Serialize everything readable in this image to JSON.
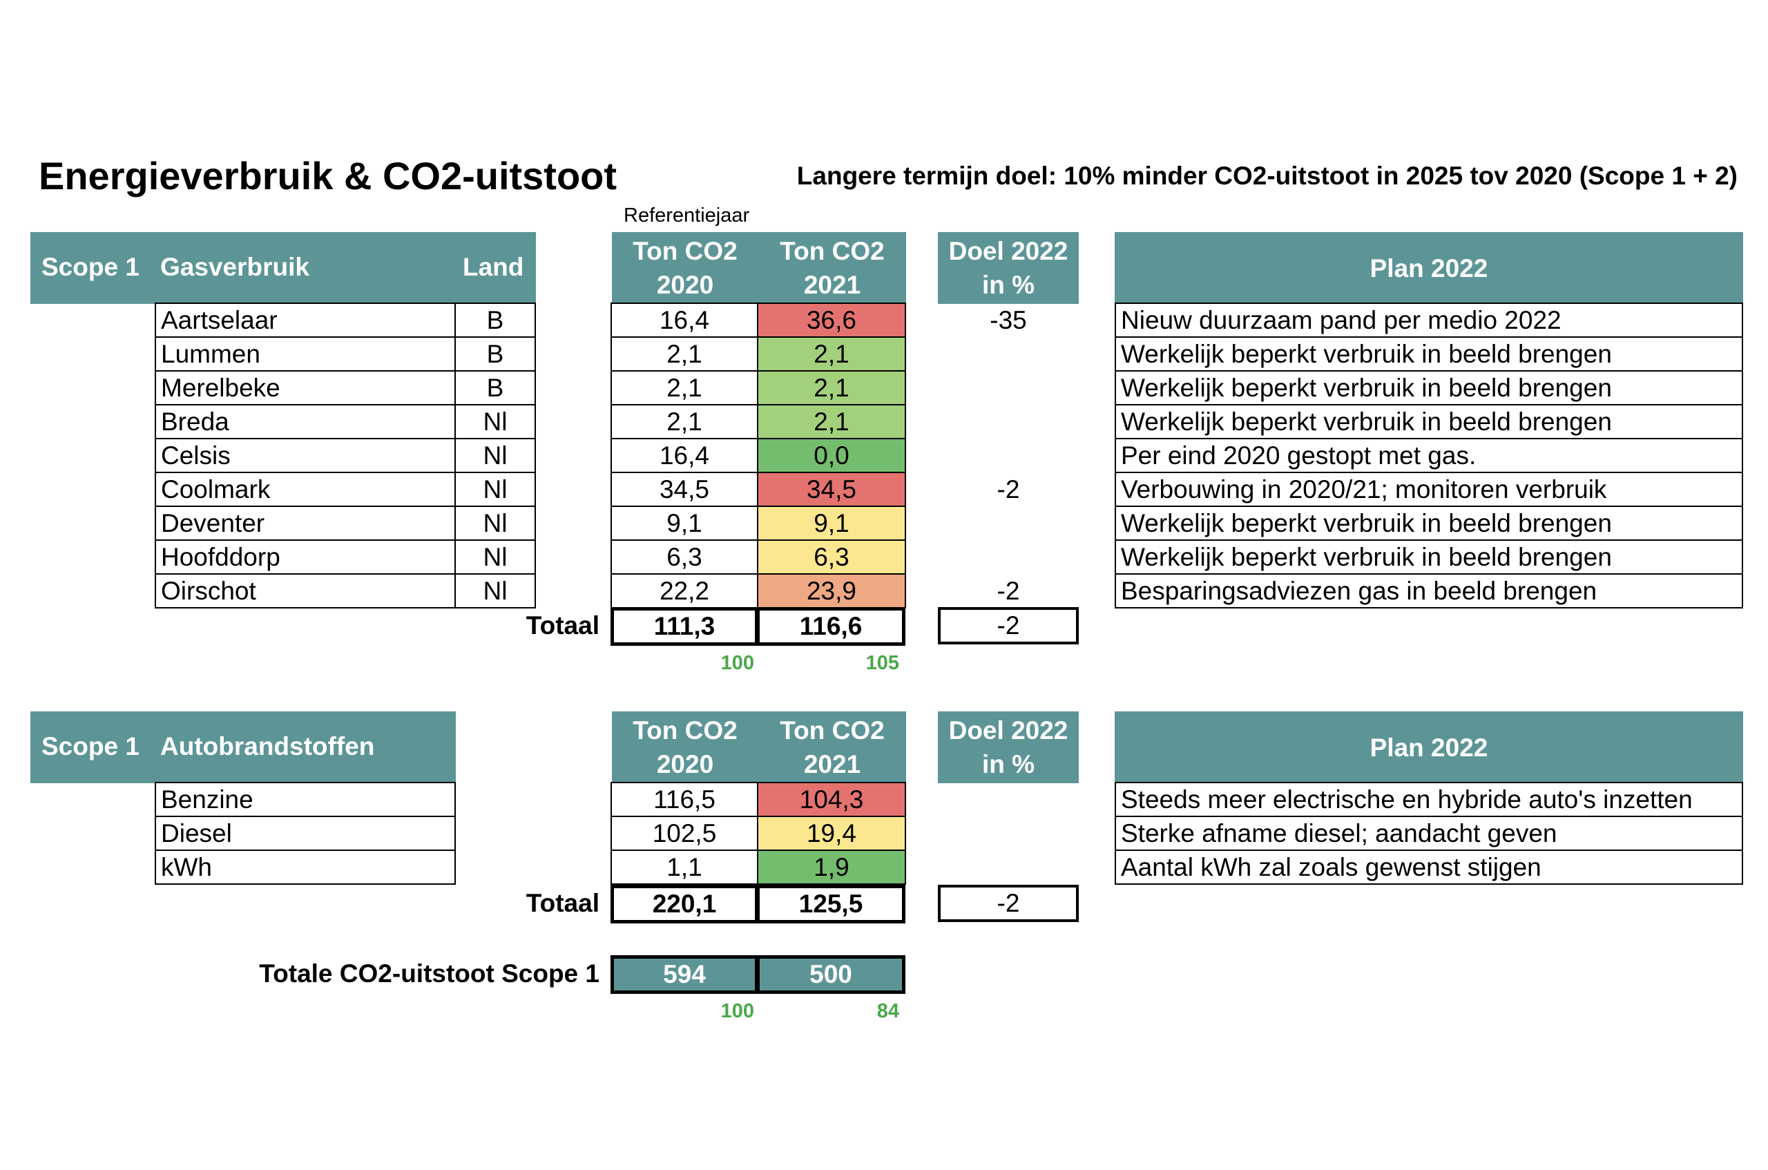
{
  "title": "Energieverbruik & CO2-uitstoot",
  "long_term_goal": "Langere termijn doel: 10% minder CO2-uitstoot in 2025 tov 2020 (Scope 1 + 2)",
  "reference_label": "Referentiejaar",
  "colors": {
    "header_bg": "#5d9597",
    "red": "#e47370",
    "orange": "#eea884",
    "yellow": "#fbe78f",
    "light_green": "#a3d17b",
    "green": "#74bc6e",
    "index_text": "#4aa84a"
  },
  "gas": {
    "header": {
      "scope": "Scope 1",
      "category": "Gasverbruik",
      "land": "Land",
      "ton2020_line1": "Ton CO2",
      "ton2020_line2": "2020",
      "ton2021_line1": "Ton CO2",
      "ton2021_line2": "2021",
      "doel_line1": "Doel 2022",
      "doel_line2": "in %",
      "plan": "Plan 2022"
    },
    "rows": [
      {
        "name": "Aartselaar",
        "land": "B",
        "ton2020": "16,4",
        "ton2021": "36,6",
        "status": "red",
        "doel": "-35",
        "plan": "Nieuw duurzaam pand per medio 2022"
      },
      {
        "name": "Lummen",
        "land": "B",
        "ton2020": "2,1",
        "ton2021": "2,1",
        "status": "light_green",
        "doel": "",
        "plan": "Werkelijk beperkt verbruik in beeld brengen"
      },
      {
        "name": "Merelbeke",
        "land": "B",
        "ton2020": "2,1",
        "ton2021": "2,1",
        "status": "light_green",
        "doel": "",
        "plan": "Werkelijk beperkt verbruik in beeld brengen"
      },
      {
        "name": "Breda",
        "land": "Nl",
        "ton2020": "2,1",
        "ton2021": "2,1",
        "status": "light_green",
        "doel": "",
        "plan": "Werkelijk beperkt verbruik in beeld brengen"
      },
      {
        "name": "Celsis",
        "land": "Nl",
        "ton2020": "16,4",
        "ton2021": "0,0",
        "status": "green",
        "doel": "",
        "plan": "Per eind 2020 gestopt met gas."
      },
      {
        "name": "Coolmark",
        "land": "Nl",
        "ton2020": "34,5",
        "ton2021": "34,5",
        "status": "red",
        "doel": "-2",
        "plan": "Verbouwing in 2020/21; monitoren verbruik"
      },
      {
        "name": "Deventer",
        "land": "Nl",
        "ton2020": "9,1",
        "ton2021": "9,1",
        "status": "yellow",
        "doel": "",
        "plan": "Werkelijk beperkt verbruik in beeld brengen"
      },
      {
        "name": "Hoofddorp",
        "land": "Nl",
        "ton2020": "6,3",
        "ton2021": "6,3",
        "status": "yellow",
        "doel": "",
        "plan": "Werkelijk beperkt verbruik in beeld brengen"
      },
      {
        "name": "Oirschot",
        "land": "Nl",
        "ton2020": "22,2",
        "ton2021": "23,9",
        "status": "orange",
        "doel": "-2",
        "plan": "Besparingsadviezen gas in beeld brengen"
      }
    ],
    "total_label": "Totaal",
    "total2020": "111,3",
    "total2021": "116,6",
    "total_doel": "-2",
    "index2020": "100",
    "index2021": "105"
  },
  "fuel": {
    "header": {
      "scope": "Scope 1",
      "category": "Autobrandstoffen",
      "ton2020_line1": "Ton CO2",
      "ton2020_line2": "2020",
      "ton2021_line1": "Ton CO2",
      "ton2021_line2": "2021",
      "doel_line1": "Doel 2022",
      "doel_line2": "in %",
      "plan": "Plan 2022"
    },
    "rows": [
      {
        "name": "Benzine",
        "ton2020": "116,5",
        "ton2021": "104,3",
        "status": "red",
        "plan": "Steeds meer electrische en hybride auto's inzetten"
      },
      {
        "name": "Diesel",
        "ton2020": "102,5",
        "ton2021": "19,4",
        "status": "yellow",
        "plan": "Sterke afname diesel; aandacht geven"
      },
      {
        "name": "kWh",
        "ton2020": "1,1",
        "ton2021": "1,9",
        "status": "green",
        "plan": "Aantal kWh zal zoals gewenst stijgen"
      }
    ],
    "total_label": "Totaal",
    "total2020": "220,1",
    "total2021": "125,5",
    "total_doel": "-2"
  },
  "grand": {
    "label": "Totale CO2-uitstoot Scope 1",
    "v2020": "594",
    "v2021": "500",
    "index2020": "100",
    "index2021": "84"
  }
}
